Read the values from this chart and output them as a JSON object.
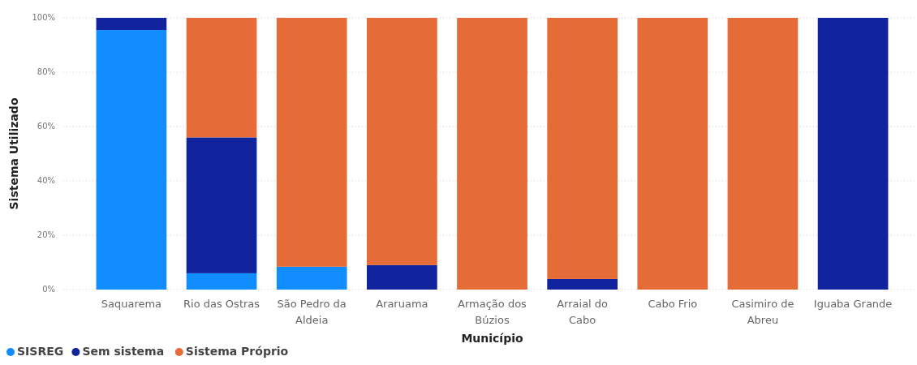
{
  "chart_data": {
    "type": "bar",
    "stacked": true,
    "xlabel": "Município",
    "ylabel": "Sistema Utilizado",
    "categories": [
      "Saquarema",
      "Rio das Ostras",
      "São Pedro da Aldeia",
      "Araruama",
      "Armação dos Búzios",
      "Arraial do Cabo",
      "Cabo Frio",
      "Casimiro de Abreu",
      "Iguaba Grande"
    ],
    "series": [
      {
        "name": "SISREG",
        "color": "#118dff",
        "values": [
          95.5,
          6,
          8.4,
          0,
          0,
          0,
          0,
          0,
          0
        ]
      },
      {
        "name": "Sem sistema",
        "color": "#12239e",
        "values": [
          4.5,
          50,
          0,
          9,
          0,
          3.9,
          0,
          0,
          100
        ]
      },
      {
        "name": "Sistema Próprio",
        "color": "#e66c37",
        "values": [
          0,
          44,
          91.6,
          91,
          100,
          96.1,
          100,
          100,
          0
        ]
      }
    ],
    "ylim": [
      0,
      100
    ],
    "yticks": [
      {
        "value": 0,
        "label": "0%"
      },
      {
        "value": 20,
        "label": "20%"
      },
      {
        "value": 40,
        "label": "40%"
      },
      {
        "value": 60,
        "label": "60%"
      },
      {
        "value": 80,
        "label": "80%"
      },
      {
        "value": 100,
        "label": "100%"
      }
    ],
    "grid": "y",
    "legend": "bottom left"
  }
}
